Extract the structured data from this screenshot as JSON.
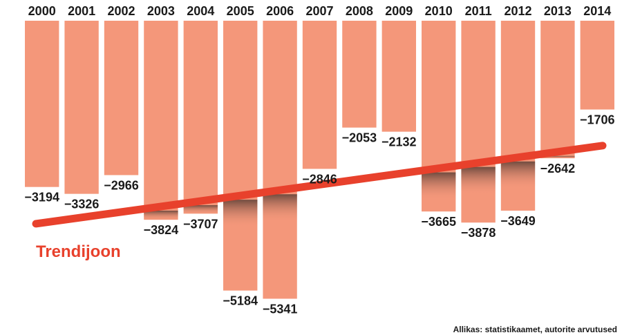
{
  "chart_data": {
    "type": "bar",
    "categories": [
      "2000",
      "2001",
      "2002",
      "2003",
      "2004",
      "2005",
      "2006",
      "2007",
      "2008",
      "2009",
      "2010",
      "2011",
      "2012",
      "2013",
      "2014"
    ],
    "values": [
      -3194,
      -3326,
      -2966,
      -3824,
      -3707,
      -5184,
      -5341,
      -2846,
      -2053,
      -2132,
      -3665,
      -3878,
      -3649,
      -2642,
      -1706
    ],
    "value_labels": [
      "−3194",
      "−3326",
      "−2966",
      "−3824",
      "−3707",
      "−5184",
      "−5341",
      "−2846",
      "−2053",
      "−2132",
      "−3665",
      "−3878",
      "−3649",
      "−2642",
      "−1706"
    ],
    "ylim": [
      -5600,
      0
    ],
    "trend": {
      "label": "Trendijoon",
      "start_value": -3900,
      "end_value": -2400
    },
    "source": "Allikas: statistikaamet, autorite arvutused",
    "colors": {
      "bar": "#f4977a",
      "bar_shadow": "#7a5a50",
      "trend": "#e8412c",
      "text": "#1a1a1a"
    }
  }
}
